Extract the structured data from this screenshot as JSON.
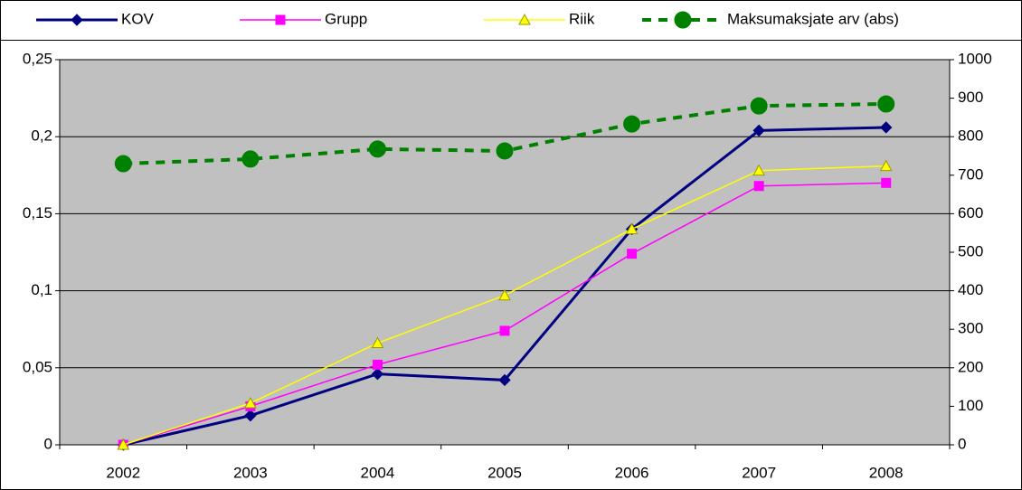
{
  "chart_data": {
    "type": "line",
    "categories": [
      "2002",
      "2003",
      "2004",
      "2005",
      "2006",
      "2007",
      "2008"
    ],
    "series": [
      {
        "name": "KOV",
        "color": "#000080",
        "marker": "diamond",
        "values": [
          0,
          0.019,
          0.046,
          0.042,
          0.14,
          0.204,
          0.206
        ]
      },
      {
        "name": "Grupp",
        "color": "#ff00ff",
        "marker": "square",
        "values": [
          0,
          0.025,
          0.052,
          0.074,
          0.124,
          0.168,
          0.17
        ]
      },
      {
        "name": "Riik",
        "color": "#ffff00",
        "marker": "triangle",
        "values": [
          0,
          0.027,
          0.066,
          0.097,
          0.14,
          0.178,
          0.181
        ]
      },
      {
        "name": "Maksumaksjate arv (abs)",
        "color": "#008000",
        "marker": "circle",
        "dashed": true,
        "axis": "y2",
        "values": [
          730,
          742,
          768,
          763,
          833,
          880,
          885
        ]
      }
    ],
    "ylim": [
      0,
      0.25
    ],
    "yticks": [
      0,
      {
        "value": 0.05,
        "label": "0,05"
      },
      {
        "value": 0.1,
        "label": "0,1"
      },
      {
        "value": 0.15,
        "label": "0,15"
      },
      {
        "value": 0.2,
        "label": "0,2"
      },
      {
        "value": 0.25,
        "label": "0,25"
      }
    ],
    "y2lim": [
      0,
      1000
    ],
    "y2ticks": [
      0,
      100,
      200,
      300,
      400,
      500,
      600,
      700,
      800,
      900,
      1000
    ],
    "grid": true,
    "legend": "top",
    "plot_background": "#c0c0c0"
  }
}
